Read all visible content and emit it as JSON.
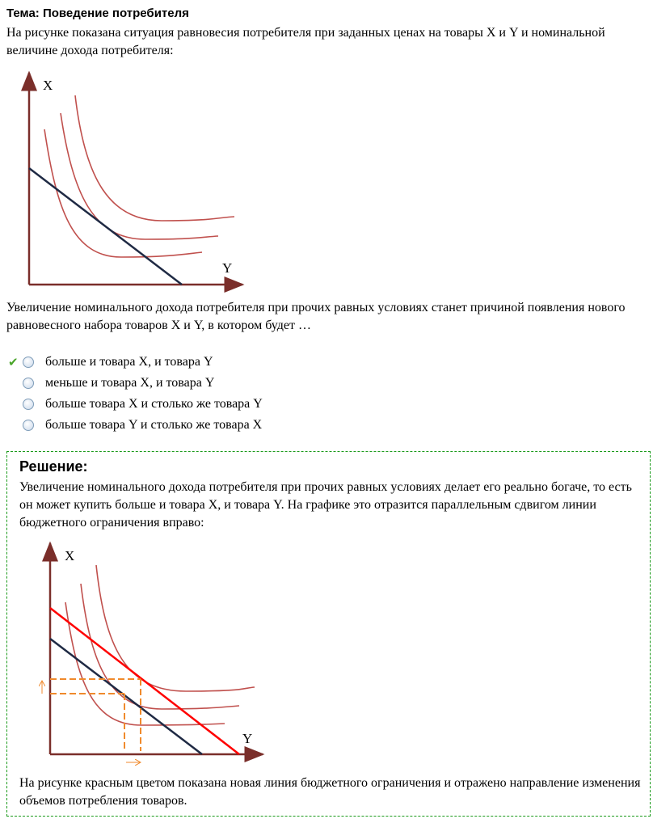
{
  "topic": "Тема: Поведение потребителя",
  "question_intro": "На рисунке показана ситуация равновесия потребителя при заданных ценах на товары X и Y и номинальной величине дохода потребителя:",
  "graph_labels": {
    "x_axis": "Y",
    "y_axis": "X"
  },
  "question": "Увеличение номинального дохода потребителя при прочих равных условиях станет причиной появления нового равновесного набора товаров X и Y, в котором будет …",
  "options": [
    {
      "label": "больше и товара X, и товара Y",
      "correct": true
    },
    {
      "label": "меньше и товара X, и товара Y",
      "correct": false
    },
    {
      "label": "больше товара X и столько же товара Y",
      "correct": false
    },
    {
      "label": "больше товара Y и столько же товара X",
      "correct": false
    }
  ],
  "solution": {
    "heading": "Решение:",
    "text": "Увеличение номинального дохода потребителя при прочих равных условиях делает его реально богаче, то есть он может купить больше и товара X, и товара Y. На графике это отразится параллельным сдвигом линии бюджетного ограничения вправо:",
    "conclusion": "На рисунке красным цветом показана новая линия бюджетного ограничения и отражено направление изменения объемов потребления товаров."
  },
  "colors": {
    "axis": "#7a2e2a",
    "curve": "#c0504d",
    "budget": "#1f2a44",
    "new_budget": "#ff0000",
    "guide": "#f08a2c",
    "border": "#1a9a1a",
    "check": "#4aa52a"
  }
}
